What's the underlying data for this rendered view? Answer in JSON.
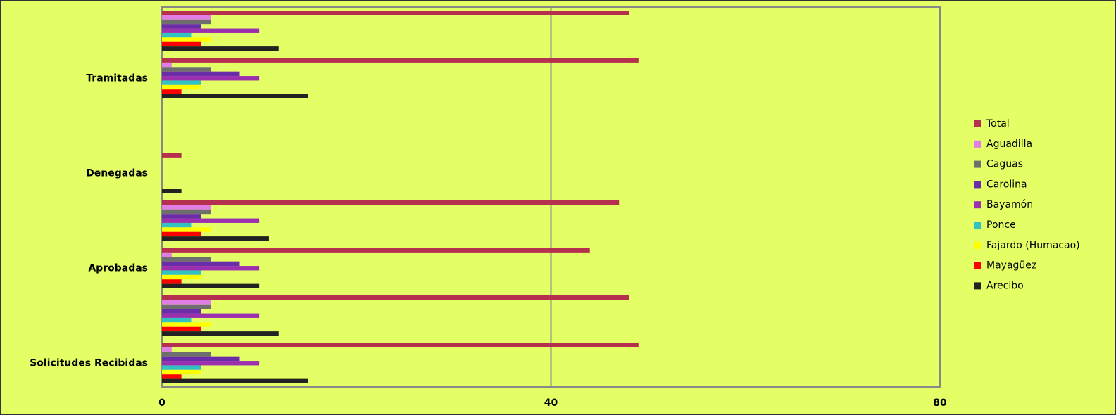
{
  "chart_data": {
    "type": "hbar",
    "categories": [
      "Solicitudes Recibidas",
      null,
      "Aprobadas",
      null,
      "Denegadas",
      null,
      "Tramitadas",
      null
    ],
    "series": [
      {
        "name": "Total",
        "color": "#b5304f",
        "values": [
          49,
          48,
          44,
          47,
          2,
          0,
          49,
          48
        ]
      },
      {
        "name": "Aguadilla",
        "color": "#e07ee6",
        "values": [
          1,
          5,
          1,
          5,
          0,
          0,
          1,
          5
        ]
      },
      {
        "name": "Caguas",
        "color": "#6e6e6e",
        "values": [
          5,
          5,
          5,
          5,
          0,
          0,
          5,
          5
        ]
      },
      {
        "name": "Carolina",
        "color": "#6a2ca8",
        "values": [
          8,
          4,
          8,
          4,
          0,
          0,
          8,
          4
        ]
      },
      {
        "name": "Bayamón",
        "color": "#9c2fb0",
        "values": [
          10,
          10,
          10,
          10,
          0,
          0,
          10,
          10
        ]
      },
      {
        "name": "Ponce",
        "color": "#33c2c2",
        "values": [
          4,
          3,
          4,
          3,
          0,
          0,
          4,
          3
        ]
      },
      {
        "name": "Fajardo (Humacao)",
        "color": "#ffff00",
        "values": [
          4,
          5,
          4,
          5,
          0,
          0,
          4,
          5
        ]
      },
      {
        "name": "Mayagüez",
        "color": "#ff0000",
        "values": [
          2,
          4,
          2,
          4,
          0,
          0,
          2,
          4
        ]
      },
      {
        "name": "Arecibo",
        "color": "#222222",
        "values": [
          15,
          12,
          10,
          11,
          2,
          0,
          15,
          12
        ]
      }
    ],
    "xlim": [
      0,
      80
    ],
    "xticks": [
      0,
      40,
      80
    ],
    "grid": true,
    "legend": "right"
  }
}
